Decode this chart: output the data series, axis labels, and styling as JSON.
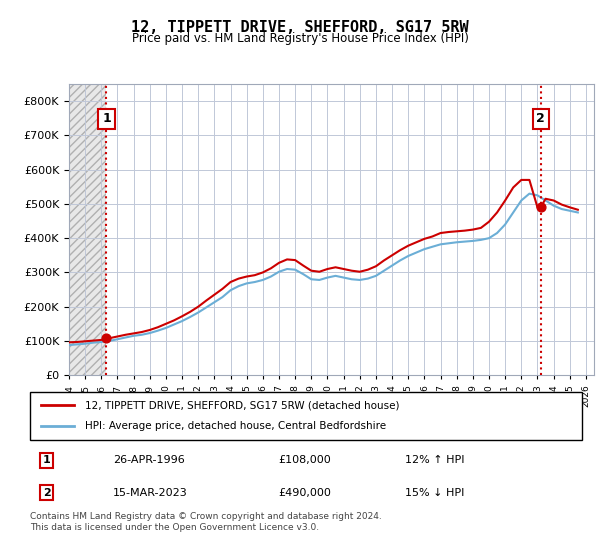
{
  "title": "12, TIPPETT DRIVE, SHEFFORD, SG17 5RW",
  "subtitle": "Price paid vs. HM Land Registry's House Price Index (HPI)",
  "legend_line1": "12, TIPPETT DRIVE, SHEFFORD, SG17 5RW (detached house)",
  "legend_line2": "HPI: Average price, detached house, Central Bedfordshire",
  "footnote": "Contains HM Land Registry data © Crown copyright and database right 2024.\nThis data is licensed under the Open Government Licence v3.0.",
  "transaction1_label": "1",
  "transaction1_date": "26-APR-1996",
  "transaction1_price": "£108,000",
  "transaction1_hpi": "12% ↑ HPI",
  "transaction2_label": "2",
  "transaction2_date": "15-MAR-2023",
  "transaction2_price": "£490,000",
  "transaction2_hpi": "15% ↓ HPI",
  "hpi_color": "#6baed6",
  "price_color": "#cc0000",
  "dashed_line_color": "#cc0000",
  "background_hatch_color": "#d0d0d0",
  "ylim": [
    0,
    850000
  ],
  "yticks": [
    0,
    100000,
    200000,
    300000,
    400000,
    500000,
    600000,
    700000,
    800000
  ],
  "xlim_start": 1994.0,
  "xlim_end": 2026.5,
  "transaction1_x": 1996.32,
  "transaction1_y": 108000,
  "transaction2_x": 2023.2,
  "transaction2_y": 490000,
  "hpi_years": [
    1994,
    1994.5,
    1995,
    1995.5,
    1996,
    1996.5,
    1997,
    1997.5,
    1998,
    1998.5,
    1999,
    1999.5,
    2000,
    2000.5,
    2001,
    2001.5,
    2002,
    2002.5,
    2003,
    2003.5,
    2004,
    2004.5,
    2005,
    2005.5,
    2006,
    2006.5,
    2007,
    2007.5,
    2008,
    2008.5,
    2009,
    2009.5,
    2010,
    2010.5,
    2011,
    2011.5,
    2012,
    2012.5,
    2013,
    2013.5,
    2014,
    2014.5,
    2015,
    2015.5,
    2016,
    2016.5,
    2017,
    2017.5,
    2018,
    2018.5,
    2019,
    2019.5,
    2020,
    2020.5,
    2021,
    2021.5,
    2022,
    2022.5,
    2023,
    2023.5,
    2024,
    2024.5,
    2025,
    2025.5
  ],
  "hpi_values": [
    88000,
    90000,
    92000,
    95000,
    97000,
    100000,
    105000,
    110000,
    115000,
    118000,
    123000,
    130000,
    138000,
    148000,
    158000,
    170000,
    183000,
    198000,
    213000,
    228000,
    248000,
    260000,
    268000,
    272000,
    278000,
    288000,
    302000,
    310000,
    308000,
    295000,
    280000,
    278000,
    285000,
    290000,
    285000,
    280000,
    278000,
    282000,
    290000,
    305000,
    320000,
    335000,
    348000,
    358000,
    368000,
    375000,
    382000,
    385000,
    388000,
    390000,
    392000,
    395000,
    400000,
    415000,
    440000,
    475000,
    510000,
    530000,
    525000,
    510000,
    495000,
    485000,
    480000,
    475000
  ],
  "price_years": [
    1994,
    1994.5,
    1995,
    1995.5,
    1996,
    1996.32,
    1996.5,
    1997,
    1997.5,
    1998,
    1998.5,
    1999,
    1999.5,
    2000,
    2000.5,
    2001,
    2001.5,
    2002,
    2002.5,
    2003,
    2003.5,
    2004,
    2004.5,
    2005,
    2005.5,
    2006,
    2006.5,
    2007,
    2007.5,
    2008,
    2008.5,
    2009,
    2009.5,
    2010,
    2010.5,
    2011,
    2011.5,
    2012,
    2012.5,
    2013,
    2013.5,
    2014,
    2014.5,
    2015,
    2015.5,
    2016,
    2016.5,
    2017,
    2017.5,
    2018,
    2018.5,
    2019,
    2019.5,
    2020,
    2020.5,
    2021,
    2021.5,
    2022,
    2022.5,
    2023,
    2023.2,
    2023.5,
    2024,
    2024.5,
    2025,
    2025.5
  ],
  "price_values": [
    96000,
    97000,
    99000,
    101000,
    103000,
    108000,
    108000,
    113000,
    118000,
    122000,
    126000,
    132000,
    140000,
    150000,
    160000,
    172000,
    185000,
    200000,
    218000,
    235000,
    252000,
    272000,
    282000,
    288000,
    292000,
    300000,
    312000,
    328000,
    338000,
    336000,
    320000,
    305000,
    302000,
    310000,
    315000,
    310000,
    305000,
    302000,
    308000,
    318000,
    335000,
    350000,
    365000,
    378000,
    388000,
    398000,
    405000,
    415000,
    418000,
    420000,
    422000,
    425000,
    430000,
    448000,
    475000,
    510000,
    548000,
    570000,
    570000,
    490000,
    490000,
    515000,
    510000,
    498000,
    490000,
    483000
  ]
}
